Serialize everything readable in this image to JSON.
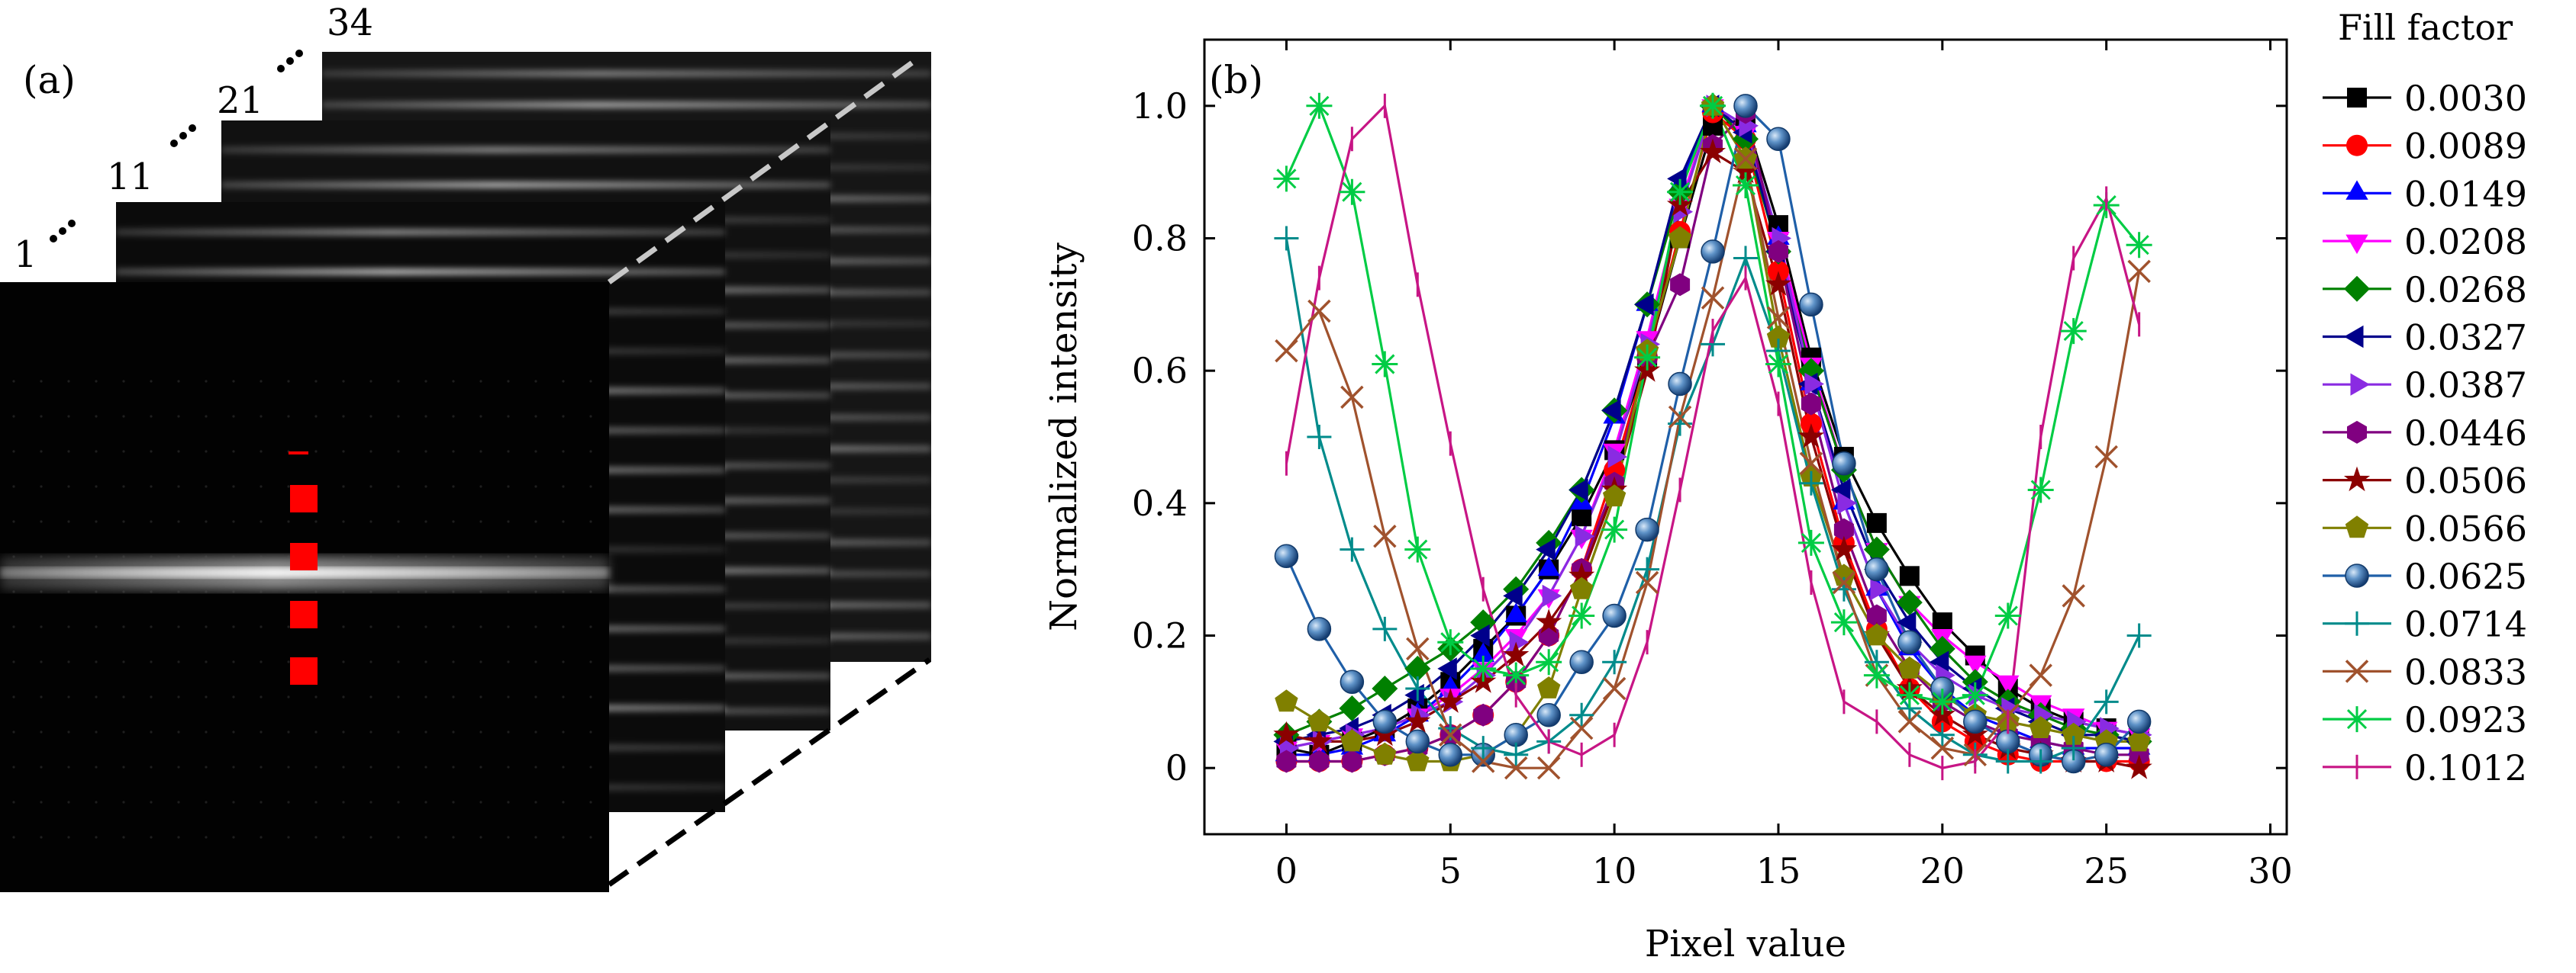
{
  "panel_a": {
    "label": "(a)",
    "frame_labels": [
      "1",
      "11",
      "21",
      "34"
    ],
    "marker_color": "#ff0000"
  },
  "panel_b": {
    "label": "(b)"
  },
  "legend": {
    "title": "Fill factor"
  },
  "chart_data": {
    "type": "line",
    "xlabel": "Pixel value",
    "ylabel": "Normalized intensity",
    "xlim": [
      -2.5,
      30.5
    ],
    "ylim": [
      -0.1,
      1.1
    ],
    "xticks": [
      0,
      5,
      10,
      15,
      20,
      25,
      30
    ],
    "yticks": [
      0,
      0.2,
      0.4,
      0.6,
      0.8,
      1.0
    ],
    "xtick_labels": [
      "0",
      "5",
      "10",
      "15",
      "20",
      "25",
      "30"
    ],
    "ytick_labels": [
      "0",
      "0.2",
      "0.4",
      "0.6",
      "0.8",
      "1.0"
    ],
    "legend_placement": "outside-right",
    "x": [
      0,
      1,
      2,
      3,
      4,
      5,
      6,
      7,
      8,
      9,
      10,
      11,
      12,
      13,
      14,
      15,
      16,
      17,
      18,
      19,
      20,
      21,
      22,
      23,
      24,
      25,
      26
    ],
    "series": [
      {
        "name": "0.0030",
        "color": "#000000",
        "marker": "square",
        "values": [
          0.03,
          0.02,
          0.04,
          0.06,
          0.09,
          0.13,
          0.18,
          0.23,
          0.3,
          0.38,
          0.48,
          0.62,
          0.8,
          0.97,
          0.98,
          0.82,
          0.62,
          0.47,
          0.37,
          0.29,
          0.22,
          0.17,
          0.12,
          0.09,
          0.07,
          0.06,
          0.05
        ]
      },
      {
        "name": "0.0089",
        "color": "#ff0000",
        "marker": "circle",
        "values": [
          0.01,
          0.01,
          0.01,
          0.02,
          0.03,
          0.05,
          0.08,
          0.13,
          0.2,
          0.3,
          0.45,
          0.62,
          0.81,
          0.99,
          0.95,
          0.75,
          0.52,
          0.34,
          0.21,
          0.12,
          0.07,
          0.04,
          0.02,
          0.01,
          0.01,
          0.01,
          0.01
        ]
      },
      {
        "name": "0.0149",
        "color": "#0000ff",
        "marker": "triangle-up",
        "values": [
          0.02,
          0.02,
          0.03,
          0.05,
          0.08,
          0.12,
          0.17,
          0.23,
          0.3,
          0.4,
          0.53,
          0.7,
          0.88,
          1.0,
          0.97,
          0.8,
          0.58,
          0.4,
          0.27,
          0.18,
          0.12,
          0.08,
          0.06,
          0.04,
          0.03,
          0.03,
          0.03
        ]
      },
      {
        "name": "0.0208",
        "color": "#ff00ff",
        "marker": "triangle-down",
        "values": [
          0.03,
          0.04,
          0.05,
          0.06,
          0.08,
          0.11,
          0.15,
          0.2,
          0.26,
          0.35,
          0.48,
          0.65,
          0.85,
          1.0,
          0.96,
          0.8,
          0.61,
          0.45,
          0.33,
          0.25,
          0.2,
          0.16,
          0.13,
          0.1,
          0.08,
          0.06,
          0.05
        ]
      },
      {
        "name": "0.0268",
        "color": "#008000",
        "marker": "diamond",
        "values": [
          0.05,
          0.07,
          0.09,
          0.12,
          0.15,
          0.18,
          0.22,
          0.27,
          0.34,
          0.42,
          0.54,
          0.7,
          0.87,
          1.0,
          0.95,
          0.78,
          0.6,
          0.45,
          0.33,
          0.25,
          0.18,
          0.13,
          0.1,
          0.08,
          0.06,
          0.05,
          0.04
        ]
      },
      {
        "name": "0.0327",
        "color": "#00008b",
        "marker": "triangle-left",
        "values": [
          0.04,
          0.05,
          0.06,
          0.08,
          0.11,
          0.15,
          0.2,
          0.26,
          0.33,
          0.42,
          0.54,
          0.7,
          0.89,
          1.0,
          0.96,
          0.78,
          0.58,
          0.42,
          0.3,
          0.22,
          0.16,
          0.12,
          0.09,
          0.07,
          0.05,
          0.05,
          0.04
        ]
      },
      {
        "name": "0.0387",
        "color": "#8a2be2",
        "marker": "triangle-right",
        "values": [
          0.03,
          0.04,
          0.05,
          0.06,
          0.08,
          0.1,
          0.14,
          0.19,
          0.26,
          0.35,
          0.47,
          0.64,
          0.84,
          1.0,
          0.97,
          0.8,
          0.58,
          0.4,
          0.27,
          0.19,
          0.14,
          0.11,
          0.09,
          0.08,
          0.07,
          0.06,
          0.05
        ]
      },
      {
        "name": "0.0446",
        "color": "#800080",
        "marker": "hexagon",
        "values": [
          0.01,
          0.01,
          0.01,
          0.02,
          0.03,
          0.05,
          0.08,
          0.13,
          0.2,
          0.3,
          0.43,
          0.62,
          0.73,
          0.94,
          0.99,
          0.78,
          0.55,
          0.36,
          0.23,
          0.15,
          0.1,
          0.07,
          0.05,
          0.04,
          0.03,
          0.02,
          0.02
        ]
      },
      {
        "name": "0.0506",
        "color": "#8b0000",
        "marker": "star",
        "values": [
          0.05,
          0.04,
          0.04,
          0.05,
          0.07,
          0.1,
          0.13,
          0.17,
          0.22,
          0.29,
          0.42,
          0.6,
          0.85,
          0.93,
          0.9,
          0.73,
          0.5,
          0.33,
          0.2,
          0.12,
          0.08,
          0.05,
          0.03,
          0.02,
          0.01,
          0.01,
          0.0
        ]
      },
      {
        "name": "0.0566",
        "color": "#808000",
        "marker": "pentagon",
        "values": [
          0.1,
          0.07,
          0.04,
          0.02,
          0.01,
          0.01,
          0.02,
          0.05,
          0.12,
          0.27,
          0.41,
          0.63,
          0.8,
          1.0,
          0.92,
          0.65,
          0.44,
          0.29,
          0.2,
          0.15,
          0.11,
          0.08,
          0.07,
          0.06,
          0.05,
          0.04,
          0.04
        ]
      },
      {
        "name": "0.0625",
        "color": "#1f5fa8",
        "marker": "sphere",
        "values": [
          0.32,
          0.21,
          0.13,
          0.07,
          0.04,
          0.02,
          0.02,
          0.05,
          0.08,
          0.16,
          0.23,
          0.36,
          0.58,
          0.78,
          1.0,
          0.95,
          0.7,
          0.46,
          0.3,
          0.19,
          0.12,
          0.07,
          0.04,
          0.02,
          0.01,
          0.02,
          0.07
        ]
      },
      {
        "name": "0.0714",
        "color": "#008b8b",
        "marker": "plus",
        "values": [
          0.8,
          0.5,
          0.33,
          0.21,
          0.12,
          0.06,
          0.03,
          0.02,
          0.04,
          0.08,
          0.16,
          0.3,
          0.52,
          0.64,
          0.77,
          0.63,
          0.43,
          0.27,
          0.16,
          0.09,
          0.05,
          0.02,
          0.01,
          0.01,
          0.03,
          0.1,
          0.2
        ]
      },
      {
        "name": "0.0833",
        "color": "#a0522d",
        "marker": "x",
        "values": [
          0.63,
          0.69,
          0.56,
          0.35,
          0.18,
          0.05,
          0.01,
          0.0,
          0.0,
          0.06,
          0.12,
          0.28,
          0.53,
          0.71,
          0.92,
          0.68,
          0.46,
          0.28,
          0.14,
          0.07,
          0.03,
          0.02,
          0.08,
          0.14,
          0.26,
          0.47,
          0.75
        ]
      },
      {
        "name": "0.0923",
        "color": "#00cc44",
        "marker": "asterisk",
        "values": [
          0.89,
          1.0,
          0.87,
          0.61,
          0.33,
          0.19,
          0.15,
          0.14,
          0.16,
          0.23,
          0.36,
          0.62,
          0.87,
          1.0,
          0.88,
          0.61,
          0.34,
          0.22,
          0.14,
          0.11,
          0.1,
          0.11,
          0.23,
          0.42,
          0.66,
          0.85,
          0.79
        ]
      },
      {
        "name": "0.1012",
        "color": "#c71585",
        "marker": "vline",
        "values": [
          0.46,
          0.74,
          0.95,
          1.0,
          0.73,
          0.49,
          0.27,
          0.11,
          0.04,
          0.02,
          0.05,
          0.19,
          0.42,
          0.66,
          0.74,
          0.55,
          0.28,
          0.1,
          0.07,
          0.02,
          0.0,
          0.01,
          0.07,
          0.5,
          0.77,
          0.86,
          0.67
        ]
      }
    ]
  }
}
